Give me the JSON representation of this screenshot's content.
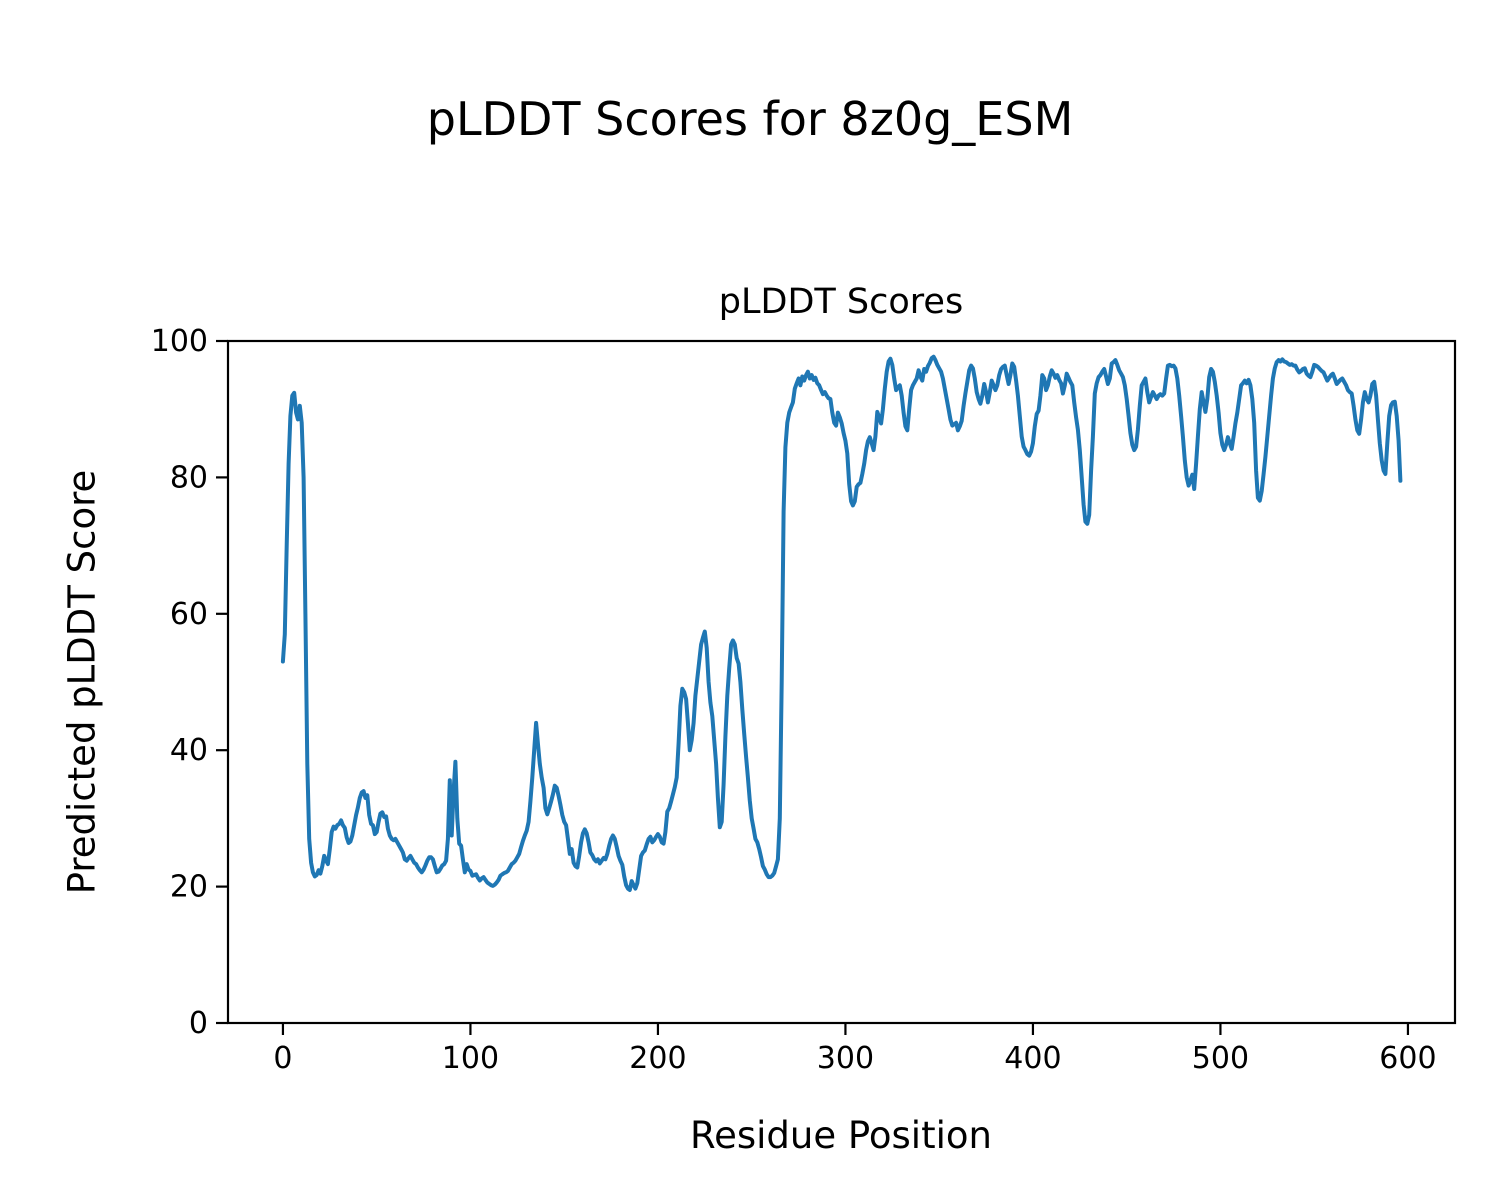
{
  "suptitle": "pLDDT Scores for 8z0g_ESM",
  "chart_data": {
    "type": "line",
    "title": "pLDDT Scores",
    "xlabel": "Residue Position",
    "ylabel": "Predicted pLDDT Score",
    "xlim": [
      -29.3,
      625.1
    ],
    "ylim": [
      0,
      100
    ],
    "xticks": [
      0,
      100,
      200,
      300,
      400,
      500,
      600
    ],
    "yticks": [
      0,
      20,
      40,
      60,
      80,
      100
    ],
    "grid": false,
    "legend": "none",
    "line_color": "#1f77b4",
    "series": [
      {
        "name": "pLDDT",
        "x_start": 0,
        "x_step": 1,
        "y": [
          53,
          57,
          70,
          82,
          89,
          92,
          92.4,
          89.5,
          88.5,
          90.5,
          88,
          80,
          60,
          38,
          27,
          23.5,
          22.1,
          21.5,
          21.7,
          22.4,
          21.9,
          23,
          24.5,
          23.8,
          23.3,
          25.5,
          28,
          28.8,
          28.5,
          29,
          29.2,
          29.7,
          29,
          28.6,
          27.2,
          26.4,
          26.6,
          27.5,
          29,
          30.5,
          31.6,
          33,
          33.8,
          34,
          33,
          33.4,
          30.5,
          29.2,
          29,
          27.7,
          28,
          29.5,
          30.7,
          30.9,
          30.2,
          30.3,
          28.5,
          27.5,
          27,
          26.8,
          27,
          26.5,
          26,
          25.5,
          25,
          24,
          23.8,
          24.2,
          24.5,
          24,
          23.5,
          23.3,
          22.8,
          22.4,
          22.1,
          22.5,
          23.1,
          23.8,
          24.3,
          24.3,
          24,
          23,
          22.1,
          22.2,
          22.6,
          23.1,
          23.3,
          23.8,
          27,
          35.6,
          27.5,
          34,
          38.3,
          30,
          26.3,
          26,
          24,
          22.1,
          23.3,
          22.5,
          22.3,
          21.6,
          21.7,
          21.8,
          21.3,
          20.9,
          21.2,
          21.4,
          21,
          20.6,
          20.4,
          20.2,
          20.1,
          20.3,
          20.6,
          21,
          21.6,
          21.8,
          22,
          22.1,
          22.3,
          22.8,
          23.3,
          23.5,
          23.8,
          24.3,
          24.8,
          25.8,
          26.7,
          27.5,
          28.2,
          29.5,
          32.5,
          36,
          40,
          44,
          41,
          38,
          36,
          34.5,
          31.5,
          30.6,
          31.5,
          32.5,
          33.5,
          34.8,
          34.5,
          33.3,
          32,
          30.5,
          29.5,
          29,
          27,
          24.8,
          25.5,
          23.5,
          23,
          22.8,
          24.5,
          26.5,
          27.8,
          28.4,
          27.8,
          26.5,
          25,
          24.6,
          24,
          23.7,
          24,
          23.4,
          23.8,
          24.2,
          24,
          24.8,
          26,
          27,
          27.5,
          27,
          25.8,
          24.5,
          23.8,
          23.2,
          21.5,
          20.2,
          19.7,
          19.5,
          20.8,
          20.2,
          19.7,
          20.5,
          22.5,
          24.5,
          25,
          25.3,
          26.2,
          27,
          27.3,
          26.5,
          26.8,
          27.3,
          27.7,
          27.3,
          26.5,
          26.3,
          28,
          31,
          31.5,
          32.5,
          33.5,
          34.6,
          36,
          41,
          46.5,
          49,
          48.5,
          47.5,
          44,
          40,
          41.5,
          44,
          48,
          50.5,
          53,
          55.5,
          56.5,
          57.4,
          55,
          50,
          47,
          45,
          41.5,
          38,
          33,
          28.7,
          29.5,
          35,
          42,
          48,
          52,
          55.5,
          56.1,
          55.5,
          53.5,
          52.7,
          50,
          46,
          42.4,
          39,
          36,
          32.6,
          30,
          28.5,
          27,
          26.5,
          25.5,
          24.3,
          23,
          22.5,
          21.8,
          21.4,
          21.4,
          21.6,
          22,
          23,
          24,
          30,
          50,
          75,
          84.4,
          88,
          89.5,
          90.3,
          91,
          93,
          93.8,
          94.5,
          93.5,
          94.8,
          94.2,
          95,
          95.5,
          94.5,
          95,
          94.3,
          94.6,
          93.8,
          93.5,
          92.8,
          92.2,
          92.5,
          92,
          91.6,
          91.5,
          89.5,
          88,
          87.6,
          89.5,
          88.8,
          87.9,
          86.5,
          85.4,
          83.5,
          79,
          76.5,
          75.9,
          76.5,
          78.6,
          79,
          79.2,
          80.5,
          82,
          84,
          85.3,
          85.9,
          85,
          84,
          86,
          89.6,
          88.8,
          87.9,
          90,
          93,
          95.5,
          97,
          97.4,
          96.5,
          94.5,
          92.8,
          93.2,
          93.5,
          92,
          89.5,
          87.5,
          86.9,
          90,
          92.8,
          93.5,
          94,
          94.5,
          95.7,
          94.8,
          94.2,
          95.9,
          95.5,
          96.3,
          96.8,
          97.5,
          97.7,
          97.2,
          96.5,
          96,
          95.5,
          94.5,
          93,
          91.5,
          90,
          88.5,
          87.6,
          87.8,
          88,
          86.9,
          87.5,
          88.3,
          90.5,
          92.3,
          94,
          95.7,
          96.4,
          96,
          94.5,
          92.5,
          91.5,
          90.8,
          92,
          93.7,
          92.5,
          91,
          92.5,
          94.2,
          93.5,
          92.8,
          93.5,
          95,
          95.9,
          96.2,
          96.4,
          95,
          93.7,
          95,
          96.7,
          96.2,
          94.2,
          92,
          89,
          86,
          84.5,
          84,
          83.4,
          83.2,
          83.8,
          85,
          87.5,
          89.3,
          89.8,
          92,
          95,
          94.5,
          92.8,
          93.5,
          94.8,
          95.7,
          95.2,
          94.6,
          95,
          94.3,
          93.8,
          92.3,
          93.5,
          95.2,
          94.6,
          94,
          93.5,
          91,
          88.8,
          87,
          84,
          80,
          76,
          73.5,
          73.2,
          74.5,
          81,
          86,
          92.3,
          93.8,
          94.7,
          95,
          95.5,
          95.9,
          94.8,
          93.7,
          94.5,
          96.7,
          96.9,
          97.2,
          96.5,
          95.7,
          95.2,
          94.7,
          93.5,
          91.5,
          89,
          86.5,
          84.8,
          84,
          84.5,
          87,
          90.5,
          93.5,
          94,
          94.5,
          92.5,
          91,
          91.8,
          92.5,
          92,
          91.5,
          92,
          92.2,
          92,
          92.3,
          94.5,
          96.4,
          96.5,
          96.3,
          96.4,
          96,
          94.5,
          92,
          89,
          86,
          82.5,
          80,
          78.8,
          79.5,
          80.4,
          78.3,
          82,
          86,
          90,
          92.5,
          91,
          89.6,
          91.5,
          94.7,
          95.9,
          95.5,
          94,
          92,
          89.5,
          86.5,
          84.8,
          84,
          84.8,
          85.9,
          85,
          84.2,
          86,
          87.9,
          89.5,
          91.5,
          93.5,
          93.8,
          94.2,
          93.8,
          94.3,
          93.5,
          91.5,
          88,
          81,
          77,
          76.6,
          78,
          80.5,
          83,
          86,
          89,
          92,
          94.5,
          96,
          96.9,
          97.2,
          97,
          97.3,
          97,
          96.9,
          96.7,
          96.5,
          96.6,
          96.4,
          96.4,
          95.8,
          95.4,
          95.6,
          95.9,
          96,
          95.2,
          94.9,
          94.7,
          95.5,
          96.5,
          96.4,
          96.2,
          95.9,
          95.6,
          95.4,
          94.8,
          94.2,
          94.6,
          95,
          95.2,
          94.5,
          93.7,
          94,
          94.3,
          94.5,
          94,
          93.5,
          92.8,
          92.5,
          92.3,
          90.5,
          88.5,
          86.9,
          86.4,
          88.5,
          91,
          92.5,
          91.5,
          91,
          92,
          93.7,
          94,
          92,
          88.5,
          85,
          82.5,
          81,
          80.5,
          85,
          89,
          90.6,
          91,
          91.1,
          89,
          85.4,
          79.5
        ]
      }
    ]
  }
}
